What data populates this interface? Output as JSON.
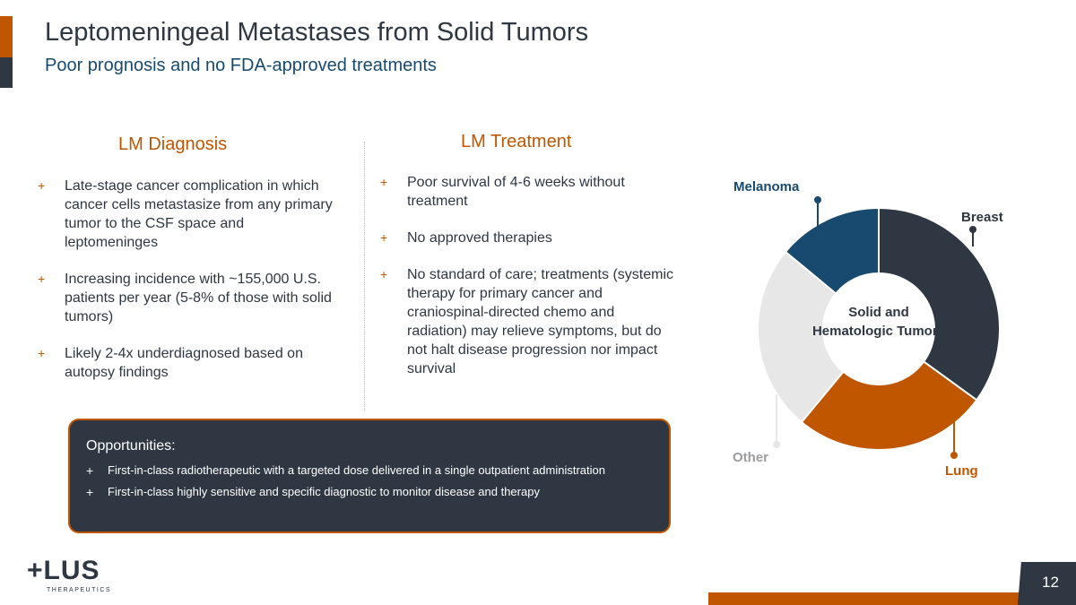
{
  "header": {
    "title": "Leptomeningeal Metastases from Solid Tumors",
    "subtitle": "Poor prognosis and no FDA-approved treatments"
  },
  "diagnosis": {
    "heading": "LM Diagnosis",
    "bullets": [
      "Late-stage cancer complication in which cancer cells metastasize from any primary tumor to the CSF space and leptomeninges",
      "Increasing incidence with ~155,000 U.S. patients per year (5-8% of those with solid tumors)",
      "Likely 2-4x underdiagnosed based on autopsy findings"
    ]
  },
  "treatment": {
    "heading": "LM Treatment",
    "bullets": [
      "Poor survival of 4-6 weeks without treatment",
      "No approved therapies",
      "No standard of care; treatments (systemic therapy for primary cancer and craniospinal-directed chemo and radiation) may relieve symptoms, but do not halt disease progression nor impact survival"
    ]
  },
  "opportunities": {
    "heading": "Opportunities:",
    "bullets": [
      "First-in-class radiotherapeutic with a targeted dose delivered in a single outpatient administration",
      "First-in-class highly sensitive and specific diagnostic to monitor disease and therapy"
    ]
  },
  "bullet_symbol": "+",
  "chart_data": {
    "type": "pie",
    "center_label": "Solid and Hematologic Tumors",
    "categories": [
      "Breast",
      "Lung",
      "Other",
      "Melanoma"
    ],
    "values": [
      35,
      26,
      25,
      14
    ],
    "colors": [
      "#2e3742",
      "#c05600",
      "#e6e7e6",
      "#174a6e"
    ]
  },
  "footer": {
    "logo": "PLUS THERAPEUTICS",
    "page": "12"
  }
}
